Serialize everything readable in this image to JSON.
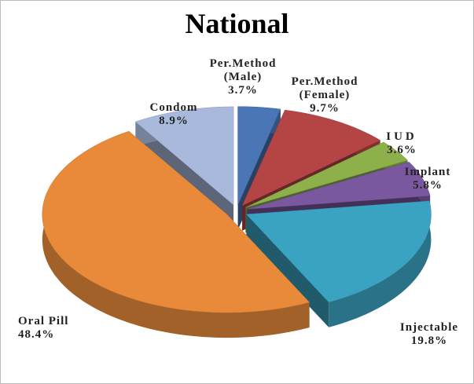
{
  "chart_data": {
    "type": "pie3d",
    "title": "National",
    "categories": [
      "Per.Method (Male)",
      "Per.Method (Female)",
      "IUD",
      "Implant",
      "Injectable",
      "Oral Pill",
      "Condom"
    ],
    "values": [
      3.7,
      9.7,
      3.6,
      5.8,
      19.8,
      48.4,
      8.9
    ],
    "value_labels": [
      "3.7%",
      "9.7%",
      "3.6%",
      "5.8%",
      "19.8%",
      "48.4%",
      "8.9%"
    ],
    "colors": [
      "#4a76b5",
      "#b54545",
      "#8db04a",
      "#7a58a0",
      "#3aa3c2",
      "#e88a3a",
      "#a9b9dc"
    ]
  }
}
